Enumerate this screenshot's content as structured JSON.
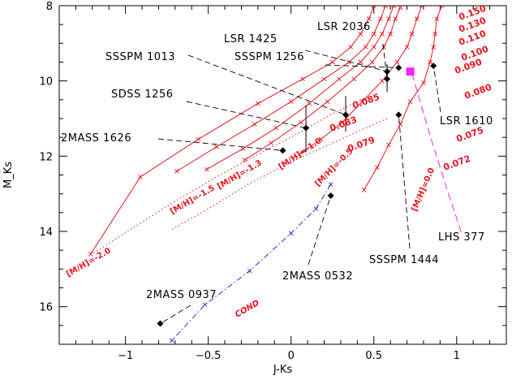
{
  "chart_data": {
    "type": "scatter",
    "title": "",
    "xlabel": "J-Ks",
    "ylabel": "M_Ks",
    "xlim": [
      -1.4,
      1.3
    ],
    "ylim": [
      17.0,
      8.0
    ],
    "y_inverted": true,
    "x_ticks": [
      -1,
      -0.5,
      0,
      0.5,
      1
    ],
    "x_tick_labels": [
      "−1",
      "−0.5",
      "0",
      "0.5",
      "1"
    ],
    "y_ticks": [
      8,
      10,
      12,
      14,
      16
    ],
    "y_tick_labels": [
      "8",
      "10",
      "12",
      "14",
      "16"
    ],
    "colors": {
      "model": "#e8141d",
      "cond": "#1f2bd6",
      "lhs": "#ff22ff",
      "object": "#000000"
    },
    "series": [
      {
        "name": "[M/H]=0.0",
        "style": "solid",
        "points": [
          [
            0.91,
            8.0
          ],
          [
            0.88,
            8.35
          ],
          [
            0.87,
            8.75
          ],
          [
            0.86,
            9.1
          ],
          [
            0.84,
            9.5
          ],
          [
            0.8,
            10.05
          ],
          [
            0.72,
            10.55
          ],
          [
            0.66,
            11.15
          ],
          [
            0.59,
            11.7
          ],
          [
            0.52,
            12.3
          ],
          [
            0.44,
            12.9
          ]
        ]
      },
      {
        "name": "[M/H]=-0.5",
        "style": "solid",
        "points": [
          [
            0.79,
            8.0
          ],
          [
            0.76,
            8.35
          ],
          [
            0.73,
            8.75
          ],
          [
            0.7,
            9.1
          ],
          [
            0.64,
            9.5
          ],
          [
            0.55,
            10.0
          ],
          [
            0.43,
            10.55
          ],
          [
            0.31,
            11.1
          ],
          [
            0.18,
            11.55
          ],
          [
            0.05,
            11.95
          ]
        ]
      },
      {
        "name": "[M/H]=-1.0",
        "style": "solid",
        "points": [
          [
            0.66,
            8.05
          ],
          [
            0.63,
            8.35
          ],
          [
            0.6,
            8.75
          ],
          [
            0.56,
            9.1
          ],
          [
            0.49,
            9.5
          ],
          [
            0.38,
            9.95
          ],
          [
            0.22,
            10.55
          ],
          [
            0.06,
            11.1
          ],
          [
            -0.12,
            11.65
          ],
          [
            -0.28,
            12.1
          ]
        ]
      },
      {
        "name": "[M/H]=-1.3",
        "style": "solid",
        "points": [
          [
            0.62,
            8.0
          ],
          [
            0.59,
            8.35
          ],
          [
            0.55,
            8.75
          ],
          [
            0.5,
            9.1
          ],
          [
            0.42,
            9.5
          ],
          [
            0.29,
            9.95
          ],
          [
            0.11,
            10.6
          ],
          [
            -0.09,
            11.25
          ],
          [
            -0.29,
            11.8
          ],
          [
            -0.51,
            12.35
          ]
        ]
      },
      {
        "name": "[M/H]=-1.5",
        "style": "solid",
        "points": [
          [
            0.57,
            8.0
          ],
          [
            0.54,
            8.35
          ],
          [
            0.5,
            8.75
          ],
          [
            0.45,
            9.1
          ],
          [
            0.35,
            9.5
          ],
          [
            0.2,
            9.95
          ],
          [
            0.0,
            10.55
          ],
          [
            -0.22,
            11.15
          ],
          [
            -0.45,
            11.75
          ],
          [
            -0.69,
            12.4
          ]
        ]
      },
      {
        "name": "[M/H]=-2.0",
        "style": "solid",
        "points": [
          [
            0.5,
            8.0
          ],
          [
            0.47,
            8.35
          ],
          [
            0.42,
            8.75
          ],
          [
            0.36,
            9.1
          ],
          [
            0.25,
            9.5
          ],
          [
            0.07,
            9.95
          ],
          [
            -0.2,
            10.6
          ],
          [
            -0.56,
            11.55
          ],
          [
            -0.91,
            12.55
          ],
          [
            -1.21,
            14.6
          ]
        ]
      },
      {
        "name": "0.085",
        "style": "dotted",
        "points": [
          [
            0.42,
            10.5
          ],
          [
            0.22,
            10.95
          ],
          [
            0.02,
            11.45
          ],
          [
            -0.22,
            12.0
          ],
          [
            -0.45,
            12.55
          ],
          [
            -0.72,
            13.25
          ],
          [
            -1.2,
            14.6
          ]
        ]
      },
      {
        "name": "0.083",
        "style": "dotted",
        "points": [
          [
            0.58,
            11.0
          ],
          [
            0.4,
            11.35
          ],
          [
            0.2,
            11.75
          ],
          [
            -0.02,
            12.2
          ],
          [
            -0.26,
            12.75
          ],
          [
            -0.5,
            13.4
          ],
          [
            -0.72,
            13.95
          ]
        ]
      },
      {
        "name": "COND",
        "style": "dashdot",
        "points": [
          [
            0.24,
            12.75
          ],
          [
            0.15,
            13.4
          ],
          [
            0.0,
            14.05
          ],
          [
            -0.25,
            15.05
          ],
          [
            -0.52,
            15.95
          ],
          [
            -0.72,
            16.9
          ]
        ]
      },
      {
        "name": "LHS 377",
        "style": "dashed",
        "points": [
          [
            0.73,
            9.8
          ],
          [
            0.85,
            11.6
          ],
          [
            0.94,
            12.85
          ],
          [
            1.03,
            14.05
          ]
        ]
      }
    ],
    "mass_labels": [
      "0.150",
      "0.130",
      "0.110",
      "0.100",
      "0.090",
      "0.080",
      "0.075",
      "0.072",
      "0.085",
      "0.083",
      "0.079"
    ],
    "metallicity_labels": [
      "[M/H]=0.0",
      "[M/H]=-0.5",
      "[M/H]=-1.0",
      "[M/H]=-1.3",
      "[M/H]=-1.5",
      "[M/H]=-2.0"
    ],
    "cond_label": "COND",
    "objects": [
      {
        "name": "LSR 2036",
        "x": 0.58,
        "y": 9.95,
        "err_y": [
          9.6,
          10.3
        ]
      },
      {
        "name": "LSR 1425",
        "x": 0.58,
        "y": 9.75,
        "err_y": [
          9.55,
          9.95
        ]
      },
      {
        "name": "SSSPM 1256",
        "x": 0.65,
        "y": 9.65,
        "err_y": null
      },
      {
        "name": "SSSPM 1013",
        "x": 0.33,
        "y": 10.9,
        "err_y": [
          10.4,
          11.35
        ]
      },
      {
        "name": "SDSS 1256",
        "x": 0.09,
        "y": 11.25,
        "err_y": [
          10.65,
          11.9
        ]
      },
      {
        "name": "2MASS 1626",
        "x": -0.05,
        "y": 11.85,
        "err_y": null
      },
      {
        "name": "LSR 1610",
        "x": 0.86,
        "y": 9.6,
        "err_y": null
      },
      {
        "name": "SSSPM 1444",
        "x": 0.65,
        "y": 10.9,
        "err_y": null
      },
      {
        "name": "2MASS 0532",
        "x": 0.24,
        "y": 13.05,
        "err_y": null
      },
      {
        "name": "2MASS 0937",
        "x": -0.79,
        "y": 16.45,
        "err_y": null
      },
      {
        "name": "LHS 377",
        "x": 0.72,
        "y": 9.75,
        "err_y": null,
        "marker": "square"
      }
    ]
  }
}
